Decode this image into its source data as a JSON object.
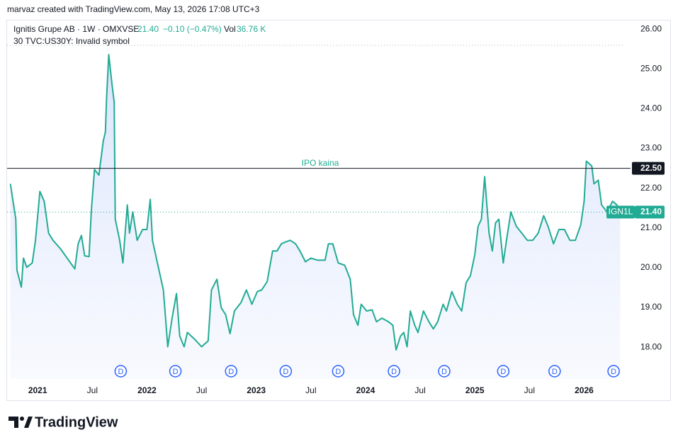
{
  "chart_data": {
    "type": "area",
    "credit": "marvaz created with TradingView.com, May 13, 2026 17:08 UTC+3",
    "legend": {
      "symbol": "Ignitis Grupe AB · 1W · OMXVSE",
      "price": "21.40",
      "change": "−0.10 (−0.47%)",
      "vol_label": "Vol",
      "vol": "36.76 K"
    },
    "note": "30 TVC:US30Y: Invalid symbol",
    "color": "#22ab94",
    "x": [
      2020.75,
      2020.8,
      2020.81,
      2020.85,
      2020.87,
      2020.9,
      2020.95,
      2020.98,
      2021.02,
      2021.06,
      2021.1,
      2021.14,
      2021.21,
      2021.27,
      2021.34,
      2021.37,
      2021.4,
      2021.43,
      2021.47,
      2021.49,
      2021.52,
      2021.56,
      2021.6,
      2021.62,
      2021.63,
      2021.65,
      2021.68,
      2021.7,
      2021.71,
      2021.75,
      2021.78,
      2021.82,
      2021.84,
      2021.87,
      2021.91,
      2021.96,
      2022.0,
      2022.03,
      2022.05,
      2022.1,
      2022.15,
      2022.19,
      2022.23,
      2022.27,
      2022.3,
      2022.34,
      2022.37,
      2022.44,
      2022.5,
      2022.56,
      2022.59,
      2022.64,
      2022.68,
      2022.72,
      2022.76,
      2022.8,
      2022.86,
      2022.91,
      2022.96,
      2023.01,
      2023.05,
      2023.1,
      2023.15,
      2023.19,
      2023.23,
      2023.27,
      2023.31,
      2023.36,
      2023.4,
      2023.45,
      2023.5,
      2023.56,
      2023.63,
      2023.66,
      2023.7,
      2023.75,
      2023.81,
      2023.86,
      2023.89,
      2023.93,
      2023.96,
      2024.01,
      2024.06,
      2024.1,
      2024.15,
      2024.21,
      2024.25,
      2024.28,
      2024.32,
      2024.35,
      2024.38,
      2024.41,
      2024.45,
      2024.48,
      2024.53,
      2024.58,
      2024.62,
      2024.66,
      2024.71,
      2024.74,
      2024.79,
      2024.84,
      2024.88,
      2024.92,
      2024.96,
      2025.0,
      2025.03,
      2025.06,
      2025.09,
      2025.13,
      2025.16,
      2025.19,
      2025.22,
      2025.26,
      2025.29,
      2025.33,
      2025.38,
      2025.43,
      2025.48,
      2025.53,
      2025.58,
      2025.63,
      2025.67,
      2025.72,
      2025.77,
      2025.82,
      2025.87,
      2025.92,
      2025.97,
      2026.0,
      2026.02,
      2026.07,
      2026.09,
      2026.13,
      2026.16,
      2026.21,
      2026.26,
      2026.3,
      2026.33
    ],
    "values": [
      22.11,
      21.22,
      19.94,
      19.51,
      20.24,
      20.01,
      20.12,
      20.69,
      21.92,
      21.67,
      20.87,
      20.69,
      20.47,
      20.24,
      19.97,
      20.6,
      20.81,
      20.3,
      20.28,
      21.4,
      22.47,
      22.33,
      23.18,
      23.42,
      24.25,
      25.36,
      24.61,
      24.16,
      21.22,
      20.69,
      20.12,
      21.58,
      20.87,
      21.4,
      20.69,
      20.96,
      20.96,
      21.72,
      20.69,
      20.06,
      19.44,
      18.01,
      18.73,
      19.35,
      18.28,
      18.01,
      18.37,
      18.19,
      18.01,
      18.16,
      19.44,
      19.71,
      18.99,
      18.82,
      18.34,
      18.91,
      19.12,
      19.44,
      19.08,
      19.4,
      19.44,
      19.65,
      20.42,
      20.42,
      20.6,
      20.65,
      20.69,
      20.6,
      20.42,
      20.15,
      20.24,
      20.19,
      20.19,
      20.6,
      20.6,
      20.12,
      20.06,
      19.71,
      18.82,
      18.55,
      19.08,
      18.91,
      18.94,
      18.64,
      18.73,
      18.64,
      18.55,
      17.93,
      18.28,
      18.37,
      18.01,
      18.91,
      18.55,
      18.37,
      18.91,
      18.64,
      18.46,
      18.64,
      19.08,
      18.91,
      19.4,
      19.08,
      18.91,
      19.62,
      19.8,
      20.33,
      21.04,
      21.22,
      22.29,
      20.87,
      20.42,
      21.13,
      21.22,
      20.12,
      20.69,
      21.4,
      21.04,
      20.87,
      20.69,
      20.69,
      20.87,
      21.31,
      21.04,
      20.6,
      20.96,
      20.96,
      20.69,
      20.69,
      21.08,
      21.67,
      22.68,
      22.56,
      22.11,
      22.2,
      21.58,
      21.4,
      21.67,
      21.58,
      21.4
    ],
    "xlim": [
      2020.72,
      2026.36
    ],
    "xticks": [
      {
        "value": 2021,
        "label": "2021"
      },
      {
        "value": 2021.5,
        "label": "Jul"
      },
      {
        "value": 2022,
        "label": "2022"
      },
      {
        "value": 2022.5,
        "label": "Jul"
      },
      {
        "value": 2023,
        "label": "2023"
      },
      {
        "value": 2023.5,
        "label": "Jul"
      },
      {
        "value": 2024,
        "label": "2024"
      },
      {
        "value": 2024.5,
        "label": "Jul"
      },
      {
        "value": 2025,
        "label": "2025"
      },
      {
        "value": 2025.5,
        "label": "Jul"
      },
      {
        "value": 2026,
        "label": "2026"
      }
    ],
    "ylim": [
      17.2,
      26.2
    ],
    "yticks": [
      {
        "value": 18,
        "label": "18.00"
      },
      {
        "value": 19,
        "label": "19.00"
      },
      {
        "value": 20,
        "label": "20.00"
      },
      {
        "value": 21,
        "label": "21.00"
      },
      {
        "value": 22,
        "label": "22.00"
      },
      {
        "value": 23,
        "label": "23.00"
      },
      {
        "value": 24,
        "label": "24.00"
      },
      {
        "value": 25,
        "label": "25.00"
      },
      {
        "value": 26,
        "label": "26.00"
      }
    ],
    "hline": {
      "value": 22.5,
      "label": "22.50",
      "text": "IPO kaina"
    },
    "last": {
      "value": 21.4,
      "label": "21.40",
      "symbol": "IGN1L"
    },
    "markers": {
      "label": "D",
      "x": [
        2021.76,
        2022.26,
        2022.77,
        2023.27,
        2023.75,
        2024.26,
        2024.72,
        2025.26,
        2025.73,
        2026.27
      ]
    },
    "footer": "TradingView"
  }
}
